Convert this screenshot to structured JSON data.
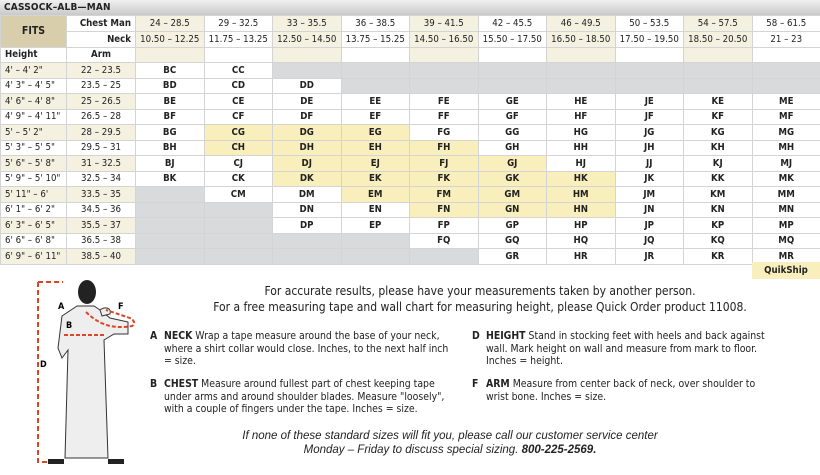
{
  "title": "CASSOCK–ALB—MAN",
  "header": {
    "fits": "FITS",
    "chest_label": "Chest Man",
    "neck_label": "Neck",
    "height_label": "Height",
    "arm_label": "Arm",
    "chest": [
      "24 – 28.5",
      "29 – 32.5",
      "33 – 35.5",
      "36 – 38.5",
      "39 – 41.5",
      "42 – 45.5",
      "46 – 49.5",
      "50 – 53.5",
      "54 – 57.5",
      "58 – 61.5"
    ],
    "neck": [
      "10.50 – 12.25",
      "11.75 – 13.25",
      "12.50 – 14.50",
      "13.75 – 15.25",
      "14.50 – 16.50",
      "15.50 – 17.50",
      "16.50 – 18.50",
      "17.50 – 19.50",
      "18.50 – 20.50",
      "21 – 23"
    ]
  },
  "rows": [
    {
      "height": "4' – 4' 2\"",
      "arm": "22 – 23.5",
      "sizes": [
        "BC",
        "CC",
        "",
        "",
        "",
        "",
        "",
        "",
        "",
        ""
      ]
    },
    {
      "height": "4' 3\" – 4' 5\"",
      "arm": "23.5 – 25",
      "sizes": [
        "BD",
        "CD",
        "DD",
        "",
        "",
        "",
        "",
        "",
        "",
        ""
      ]
    },
    {
      "height": "4' 6\" – 4' 8\"",
      "arm": "25 – 26.5",
      "sizes": [
        "BE",
        "CE",
        "DE",
        "EE",
        "FE",
        "GE",
        "HE",
        "JE",
        "KE",
        "ME"
      ]
    },
    {
      "height": "4' 9\" – 4' 11\"",
      "arm": "26.5 – 28",
      "sizes": [
        "BF",
        "CF",
        "DF",
        "EF",
        "FF",
        "GF",
        "HF",
        "JF",
        "KF",
        "MF"
      ]
    },
    {
      "height": "5' – 5' 2\"",
      "arm": "28 – 29.5",
      "sizes": [
        "BG",
        "CG",
        "DG",
        "EG",
        "FG",
        "GG",
        "HG",
        "JG",
        "KG",
        "MG"
      ]
    },
    {
      "height": "5' 3\" – 5' 5\"",
      "arm": "29.5 – 31",
      "sizes": [
        "BH",
        "CH",
        "DH",
        "EH",
        "FH",
        "GH",
        "HH",
        "JH",
        "KH",
        "MH"
      ]
    },
    {
      "height": "5' 6\" – 5' 8\"",
      "arm": "31 – 32.5",
      "sizes": [
        "BJ",
        "CJ",
        "DJ",
        "EJ",
        "FJ",
        "GJ",
        "HJ",
        "JJ",
        "KJ",
        "MJ"
      ]
    },
    {
      "height": "5' 9\" – 5' 10\"",
      "arm": "32.5 – 34",
      "sizes": [
        "BK",
        "CK",
        "DK",
        "EK",
        "FK",
        "GK",
        "HK",
        "JK",
        "KK",
        "MK"
      ]
    },
    {
      "height": "5' 11\" – 6'",
      "arm": "33.5 – 35",
      "sizes": [
        "",
        "CM",
        "DM",
        "EM",
        "FM",
        "GM",
        "HM",
        "JM",
        "KM",
        "MM"
      ]
    },
    {
      "height": "6' 1\" – 6' 2\"",
      "arm": "34.5 – 36",
      "sizes": [
        "",
        "",
        "DN",
        "EN",
        "FN",
        "GN",
        "HN",
        "JN",
        "KN",
        "MN"
      ]
    },
    {
      "height": "6' 3\" – 6' 5\"",
      "arm": "35.5 – 37",
      "sizes": [
        "",
        "",
        "DP",
        "EP",
        "FP",
        "GP",
        "HP",
        "JP",
        "KP",
        "MP"
      ]
    },
    {
      "height": "6' 6\" – 6' 8\"",
      "arm": "36.5 – 38",
      "sizes": [
        "",
        "",
        "",
        "",
        "FQ",
        "GQ",
        "HQ",
        "JQ",
        "KQ",
        "MQ"
      ]
    },
    {
      "height": "6' 9\" – 6' 11\"",
      "arm": "38.5 – 40",
      "sizes": [
        "",
        "",
        "",
        "",
        "",
        "GR",
        "HR",
        "JR",
        "KR",
        "MR"
      ]
    }
  ],
  "quikship_sizes": [
    "CG",
    "DG",
    "EG",
    "CH",
    "DH",
    "EH",
    "FH",
    "DJ",
    "EJ",
    "FJ",
    "GJ",
    "DK",
    "EK",
    "FK",
    "GK",
    "HK",
    "EM",
    "FM",
    "GM",
    "HM",
    "FN",
    "GN",
    "HN"
  ],
  "quikship_label": "QuikShip",
  "colors": {
    "quikship": "#f8efbc",
    "unavailable": "#d9dadb",
    "fits": "#d8ceab",
    "alt": "#f5f1e1",
    "measure_line": "#d9472b"
  },
  "figure": {
    "labels": {
      "a": "A",
      "b": "B",
      "d": "D",
      "f": "F"
    }
  },
  "notes": {
    "line1": "For accurate results, please have your measurements taken by another person.",
    "line2": "For a free measuring tape and wall chart for measuring height, please Quick Order product 11008."
  },
  "instructions": [
    {
      "key": "A",
      "name": "NECK",
      "text": "Wrap a tape measure around the base of your neck, where a shirt collar would close. Inches, to the next half inch = size."
    },
    {
      "key": "B",
      "name": "CHEST",
      "text": "Measure around fullest part of chest keeping tape under arms and around shoulder blades. Measure \"loosely\", with a couple of fingers under the tape. Inches = size."
    },
    {
      "key": "D",
      "name": "HEIGHT",
      "text": "Stand in stocking feet with heels and back against wall. Mark height on wall and measure from mark to floor. Inches = height."
    },
    {
      "key": "F",
      "name": "ARM",
      "text": "Measure from center back of neck, over shoulder to wrist bone. Inches = size."
    }
  ],
  "footer": {
    "line1": "If none of these standard sizes will fit you, please call our customer service center",
    "line2": "Monday – Friday to discuss special sizing.",
    "phone": "800-225-2569."
  }
}
